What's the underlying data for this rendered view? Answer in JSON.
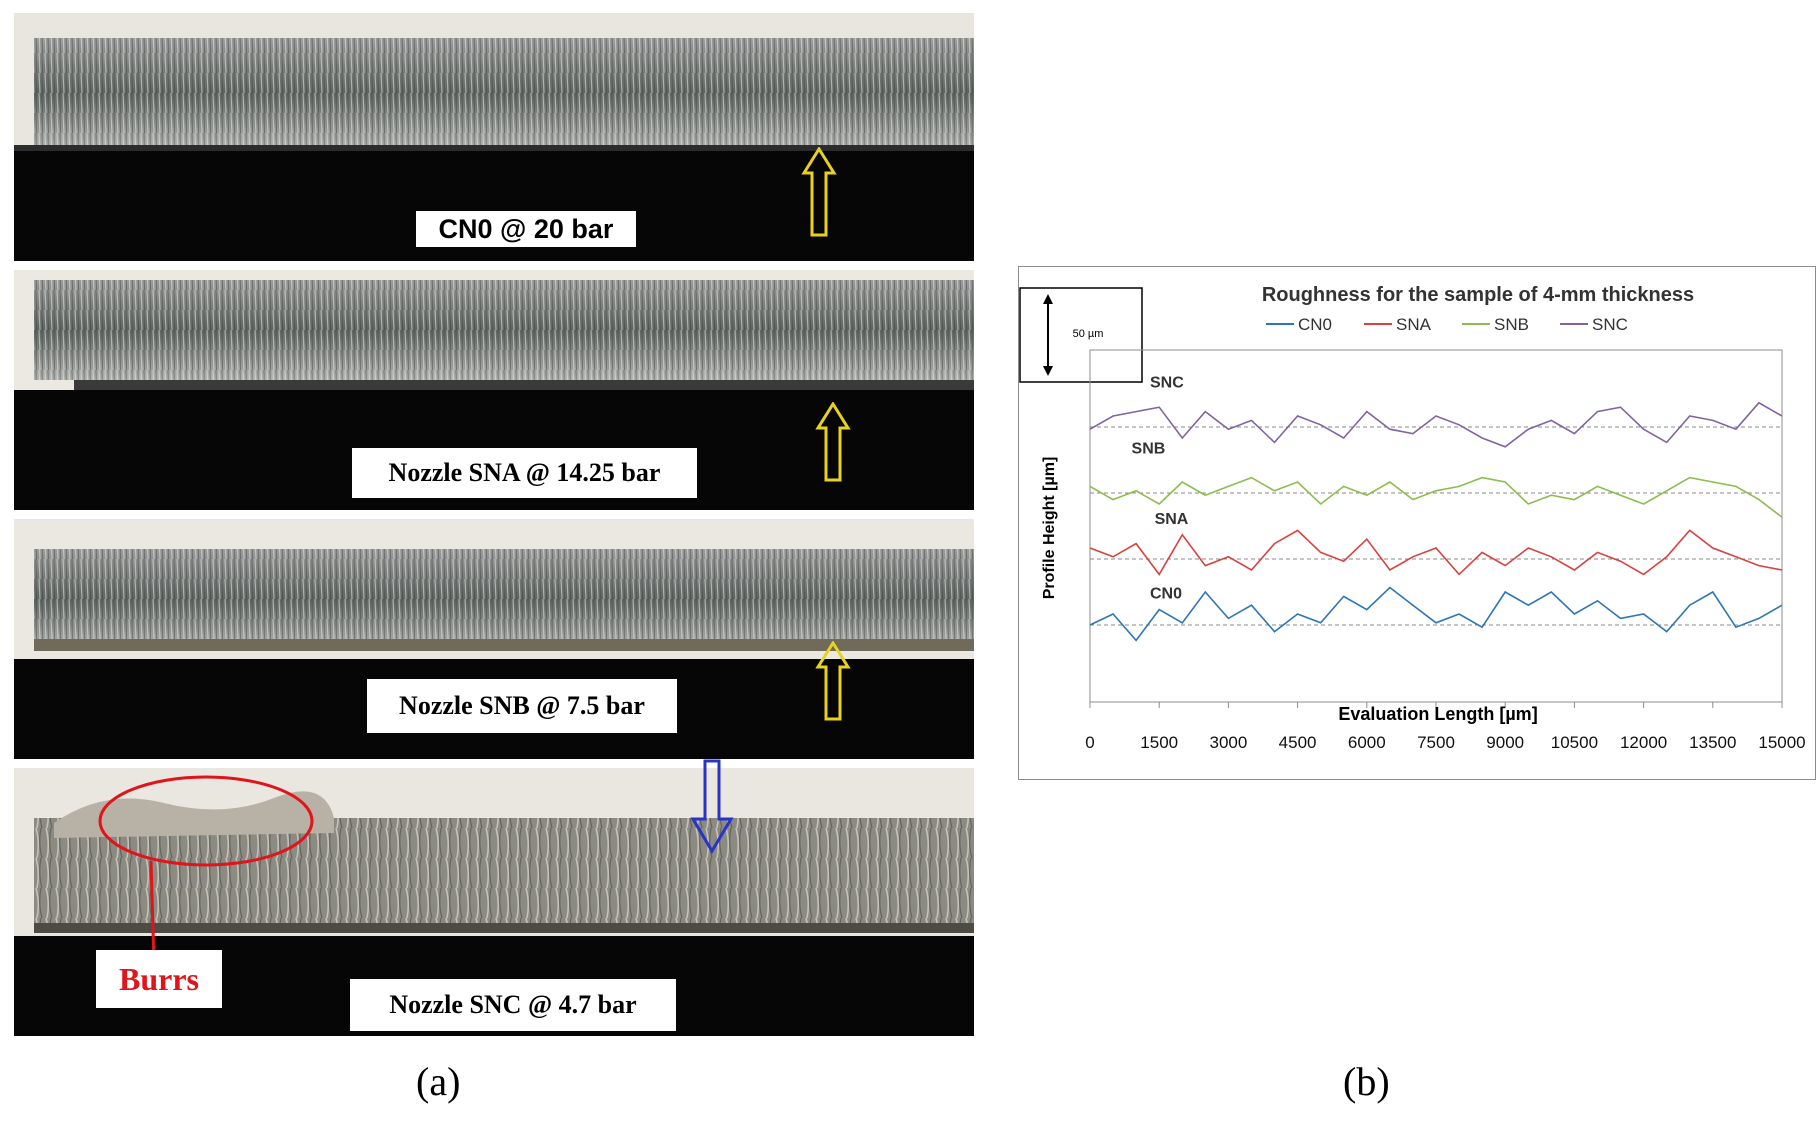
{
  "figure": {
    "panel_a_label": "(a)",
    "panel_b_label": "(b)"
  },
  "photos": {
    "strips": [
      {
        "caption": "CN0 @ 20 bar",
        "arrow": "up-arrow",
        "arrow_color": "#e8d21e"
      },
      {
        "caption": "Nozzle SNA @ 14.25 bar",
        "arrow": "up-arrow",
        "arrow_color": "#e8d21e"
      },
      {
        "caption": "Nozzle SNB @ 7.5 bar",
        "arrow": "up-arrow",
        "arrow_color": "#e8d21e"
      },
      {
        "caption": "Nozzle SNC @ 4.7 bar",
        "arrow": "down-arrow",
        "arrow_color": "#2a33c8"
      }
    ],
    "burrs_label": "Burrs",
    "burrs_color": "#e0141b"
  },
  "chart_data": {
    "type": "line",
    "title": "Roughness for the sample of 4-mm thickness",
    "xlabel": "Evaluation  Length [µm]",
    "ylabel": "Profile Height [µm]",
    "scale_bar_label": "50 µm",
    "xlim": [
      0,
      15000
    ],
    "xticks": [
      "0",
      "1500",
      "3000",
      "4500",
      "6000",
      "7500",
      "9000",
      "10500",
      "12000",
      "13500",
      "15000"
    ],
    "legend": [
      {
        "name": "CN0",
        "color": "#2e75b6"
      },
      {
        "name": "SNA",
        "color": "#d9413f"
      },
      {
        "name": "SNB",
        "color": "#8cbd4f"
      },
      {
        "name": "SNC",
        "color": "#8064a2"
      }
    ],
    "series": [
      {
        "name": "CN0",
        "label": "CN0",
        "color": "#2e75b6",
        "baseline": -45,
        "x": [
          0,
          500,
          1000,
          1500,
          2000,
          2500,
          3000,
          3500,
          4000,
          4500,
          5000,
          5500,
          6000,
          6500,
          7000,
          7500,
          8000,
          8500,
          9000,
          9500,
          10000,
          10500,
          11000,
          11500,
          12000,
          12500,
          13000,
          13500,
          14000,
          14500,
          15000
        ],
        "y": [
          -45,
          -40,
          -52,
          -38,
          -44,
          -30,
          -42,
          -36,
          -48,
          -40,
          -44,
          -32,
          -38,
          -28,
          -36,
          -44,
          -40,
          -46,
          -30,
          -36,
          -30,
          -40,
          -34,
          -42,
          -40,
          -48,
          -36,
          -30,
          -46,
          -42,
          -36
        ]
      },
      {
        "name": "SNA",
        "label": "SNA",
        "color": "#d9413f",
        "baseline": -15,
        "x": [
          0,
          500,
          1000,
          1500,
          2000,
          2500,
          3000,
          3500,
          4000,
          4500,
          5000,
          5500,
          6000,
          6500,
          7000,
          7500,
          8000,
          8500,
          9000,
          9500,
          10000,
          10500,
          11000,
          11500,
          12000,
          12500,
          13000,
          13500,
          14000,
          14500,
          15000
        ],
        "y": [
          -10,
          -14,
          -8,
          -22,
          -4,
          -18,
          -14,
          -20,
          -8,
          -2,
          -12,
          -16,
          -6,
          -20,
          -14,
          -10,
          -22,
          -12,
          -18,
          -10,
          -14,
          -20,
          -12,
          -16,
          -22,
          -14,
          -2,
          -10,
          -14,
          -18,
          -20
        ]
      },
      {
        "name": "SNB",
        "label": "SNB",
        "color": "#8cbd4f",
        "baseline": 15,
        "x": [
          0,
          500,
          1000,
          1500,
          2000,
          2500,
          3000,
          3500,
          4000,
          4500,
          5000,
          5500,
          6000,
          6500,
          7000,
          7500,
          8000,
          8500,
          9000,
          9500,
          10000,
          10500,
          11000,
          11500,
          12000,
          12500,
          13000,
          13500,
          14000,
          14500,
          15000
        ],
        "y": [
          18,
          12,
          16,
          10,
          20,
          14,
          18,
          22,
          16,
          20,
          10,
          18,
          14,
          20,
          12,
          16,
          18,
          22,
          20,
          10,
          14,
          12,
          18,
          14,
          10,
          16,
          22,
          20,
          18,
          12,
          4
        ]
      },
      {
        "name": "SNC",
        "label": "SNC",
        "color": "#8064a2",
        "baseline": 45,
        "x": [
          0,
          500,
          1000,
          1500,
          2000,
          2500,
          3000,
          3500,
          4000,
          4500,
          5000,
          5500,
          6000,
          6500,
          7000,
          7500,
          8000,
          8500,
          9000,
          9500,
          10000,
          10500,
          11000,
          11500,
          12000,
          12500,
          13000,
          13500,
          14000,
          14500,
          15000
        ],
        "y": [
          44,
          50,
          52,
          54,
          40,
          52,
          44,
          48,
          38,
          50,
          46,
          40,
          52,
          44,
          42,
          50,
          46,
          40,
          36,
          44,
          48,
          42,
          52,
          54,
          44,
          38,
          50,
          48,
          44,
          56,
          50
        ]
      }
    ]
  }
}
